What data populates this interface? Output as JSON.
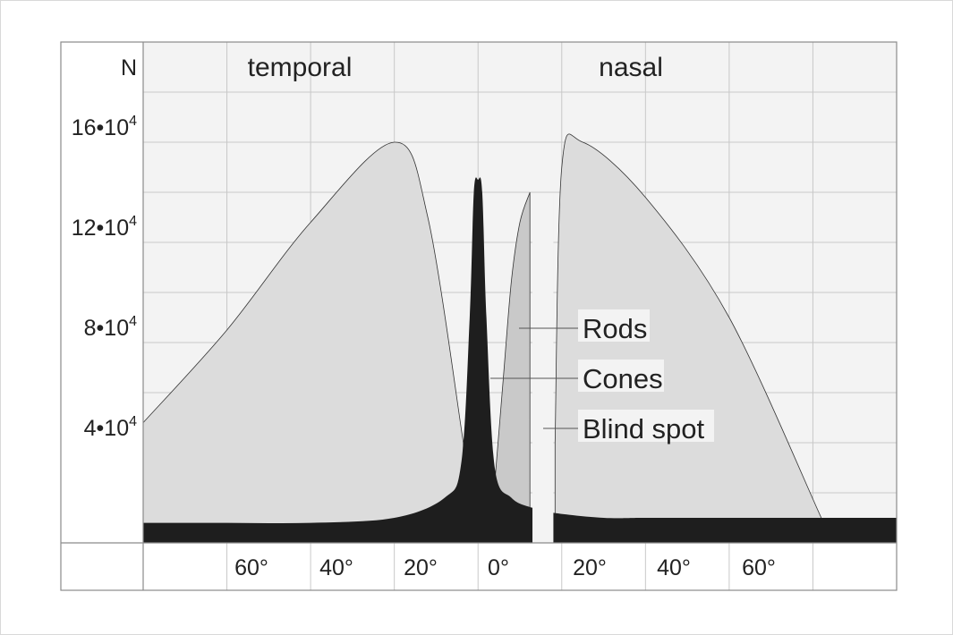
{
  "chart_data": {
    "type": "area",
    "y_axis_title": "N",
    "region_labels": [
      "temporal",
      "nasal"
    ],
    "y_ticks": [
      {
        "mantissa": "16",
        "exponent": "4",
        "value": 160000
      },
      {
        "mantissa": "12",
        "exponent": "4",
        "value": 120000
      },
      {
        "mantissa": "8",
        "exponent": "4",
        "value": 80000
      },
      {
        "mantissa": "4",
        "exponent": "4",
        "value": 40000
      }
    ],
    "x_tick_labels": [
      "60°",
      "40°",
      "20°",
      "0°",
      "20°",
      "40°",
      "60°"
    ],
    "x_ticks": [
      -60,
      -40,
      -20,
      0,
      20,
      40,
      60
    ],
    "xlim": [
      -80,
      100
    ],
    "ylim": [
      0,
      200000
    ],
    "grid": true,
    "annotations": [
      "Rods",
      "Cones",
      "Blind spot"
    ],
    "blind_spot": [
      13,
      18
    ],
    "series": [
      {
        "name": "Rods",
        "segments": [
          {
            "x": [
              -80,
              -60,
              -40,
              -20,
              -12,
              -3.5
            ],
            "y": [
              48000,
              85000,
              128000,
              160000,
              130000,
              40000
            ]
          },
          {
            "x": [
              4,
              6,
              8,
              10,
              12.4
            ],
            "y": [
              24000,
              65000,
              105000,
              128000,
              140000
            ]
          },
          {
            "x": [
              18.4,
              20,
              25,
              40,
              60,
              82
            ],
            "y": [
              40000,
              150000,
              160000,
              138000,
              90000,
              10000
            ]
          }
        ]
      },
      {
        "name": "Cones",
        "x": [
          -80,
          -60,
          -40,
          -20,
          -8,
          -4,
          -2,
          -1,
          0,
          1,
          2,
          4,
          8,
          13,
          18,
          30,
          40,
          60,
          80,
          100
        ],
        "y": [
          8000,
          8000,
          8000,
          10000,
          18000,
          32000,
          90000,
          140000,
          145000,
          140000,
          90000,
          30000,
          18000,
          14000,
          12000,
          10000,
          10000,
          10000,
          10000,
          10000
        ]
      }
    ],
    "colors": {
      "rods": "#dcdcdc",
      "cones": "#1e1e1e",
      "plot_bg": "#f3f3f3",
      "grid": "#c8c8c8"
    }
  }
}
